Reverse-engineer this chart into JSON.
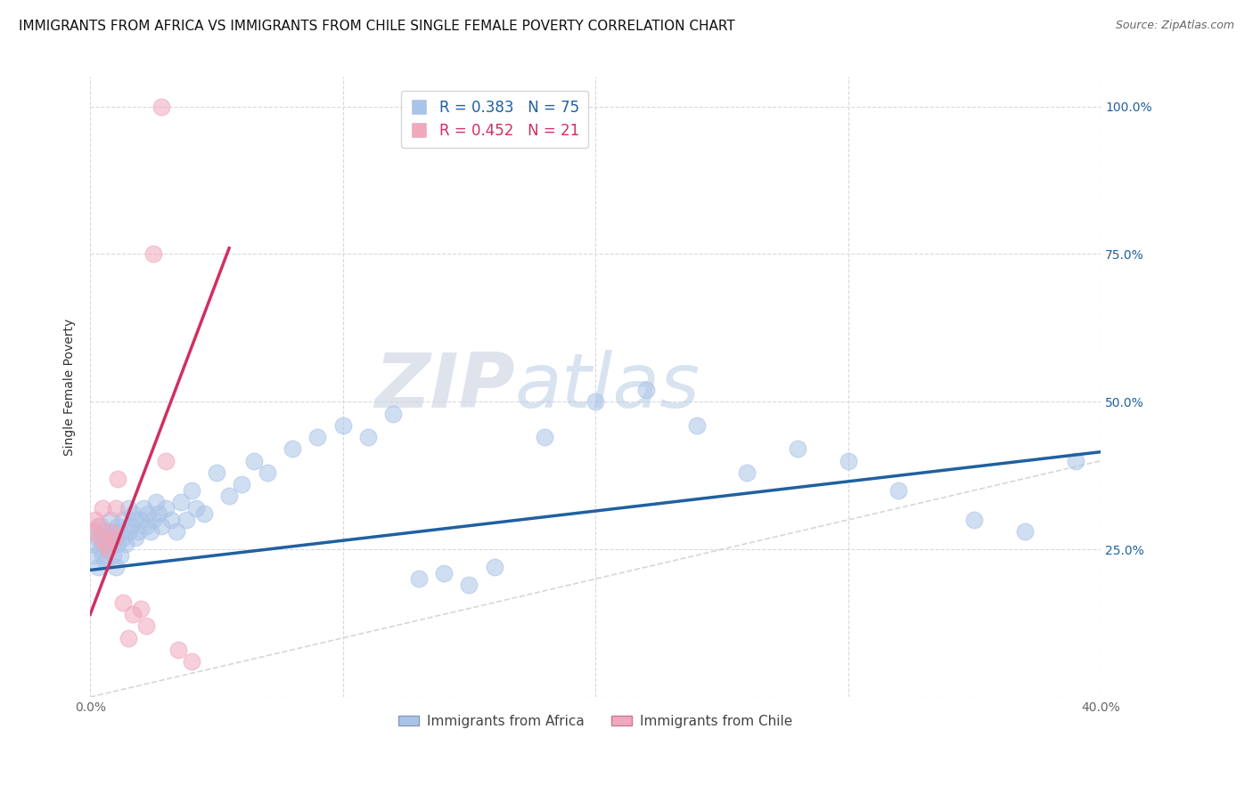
{
  "title": "IMMIGRANTS FROM AFRICA VS IMMIGRANTS FROM CHILE SINGLE FEMALE POVERTY CORRELATION CHART",
  "source": "Source: ZipAtlas.com",
  "ylabel": "Single Female Poverty",
  "xlim": [
    0.0,
    0.4
  ],
  "ylim": [
    0.0,
    1.05
  ],
  "yticks": [
    0.0,
    0.25,
    0.5,
    0.75,
    1.0
  ],
  "ytick_labels": [
    "",
    "25.0%",
    "50.0%",
    "75.0%",
    "100.0%"
  ],
  "xticks": [
    0.0,
    0.1,
    0.2,
    0.3,
    0.4
  ],
  "xtick_labels": [
    "0.0%",
    "",
    "",
    "",
    "40.0%"
  ],
  "africa_R": 0.383,
  "africa_N": 75,
  "chile_R": 0.452,
  "chile_N": 21,
  "africa_color": "#aac4e8",
  "africa_line_color": "#2060a0",
  "chile_color": "#f0a8bc",
  "chile_line_color": "#d03060",
  "diagonal_color": "#cccccc",
  "background_color": "#ffffff",
  "grid_color": "#d8d8e0",
  "africa_x": [
    0.001,
    0.002,
    0.002,
    0.003,
    0.003,
    0.004,
    0.004,
    0.005,
    0.005,
    0.006,
    0.006,
    0.007,
    0.007,
    0.008,
    0.008,
    0.009,
    0.009,
    0.01,
    0.01,
    0.011,
    0.011,
    0.012,
    0.012,
    0.013,
    0.013,
    0.014,
    0.015,
    0.015,
    0.016,
    0.017,
    0.018,
    0.018,
    0.019,
    0.02,
    0.021,
    0.022,
    0.023,
    0.024,
    0.025,
    0.026,
    0.027,
    0.028,
    0.03,
    0.032,
    0.034,
    0.036,
    0.038,
    0.04,
    0.042,
    0.045,
    0.05,
    0.055,
    0.06,
    0.065,
    0.07,
    0.08,
    0.09,
    0.1,
    0.11,
    0.12,
    0.13,
    0.14,
    0.15,
    0.16,
    0.18,
    0.2,
    0.22,
    0.24,
    0.26,
    0.28,
    0.3,
    0.32,
    0.35,
    0.37,
    0.39
  ],
  "africa_y": [
    0.26,
    0.28,
    0.24,
    0.27,
    0.22,
    0.25,
    0.29,
    0.26,
    0.24,
    0.28,
    0.23,
    0.27,
    0.25,
    0.26,
    0.3,
    0.28,
    0.24,
    0.27,
    0.22,
    0.29,
    0.26,
    0.28,
    0.24,
    0.3,
    0.27,
    0.26,
    0.28,
    0.32,
    0.29,
    0.31,
    0.3,
    0.27,
    0.28,
    0.3,
    0.32,
    0.29,
    0.31,
    0.28,
    0.3,
    0.33,
    0.31,
    0.29,
    0.32,
    0.3,
    0.28,
    0.33,
    0.3,
    0.35,
    0.32,
    0.31,
    0.38,
    0.34,
    0.36,
    0.4,
    0.38,
    0.42,
    0.44,
    0.46,
    0.44,
    0.48,
    0.2,
    0.21,
    0.19,
    0.22,
    0.44,
    0.5,
    0.52,
    0.46,
    0.38,
    0.42,
    0.4,
    0.35,
    0.3,
    0.28,
    0.4
  ],
  "chile_x": [
    0.001,
    0.002,
    0.003,
    0.004,
    0.005,
    0.006,
    0.007,
    0.008,
    0.009,
    0.01,
    0.011,
    0.013,
    0.015,
    0.017,
    0.02,
    0.022,
    0.025,
    0.028,
    0.03,
    0.035,
    0.04
  ],
  "chile_y": [
    0.28,
    0.3,
    0.29,
    0.27,
    0.32,
    0.26,
    0.25,
    0.28,
    0.27,
    0.32,
    0.37,
    0.16,
    0.1,
    0.14,
    0.15,
    0.12,
    0.75,
    1.0,
    0.4,
    0.08,
    0.06
  ],
  "watermark_zip": "ZIP",
  "watermark_atlas": "atlas",
  "title_fontsize": 11,
  "axis_label_fontsize": 10,
  "tick_fontsize": 10,
  "legend_fontsize": 11
}
